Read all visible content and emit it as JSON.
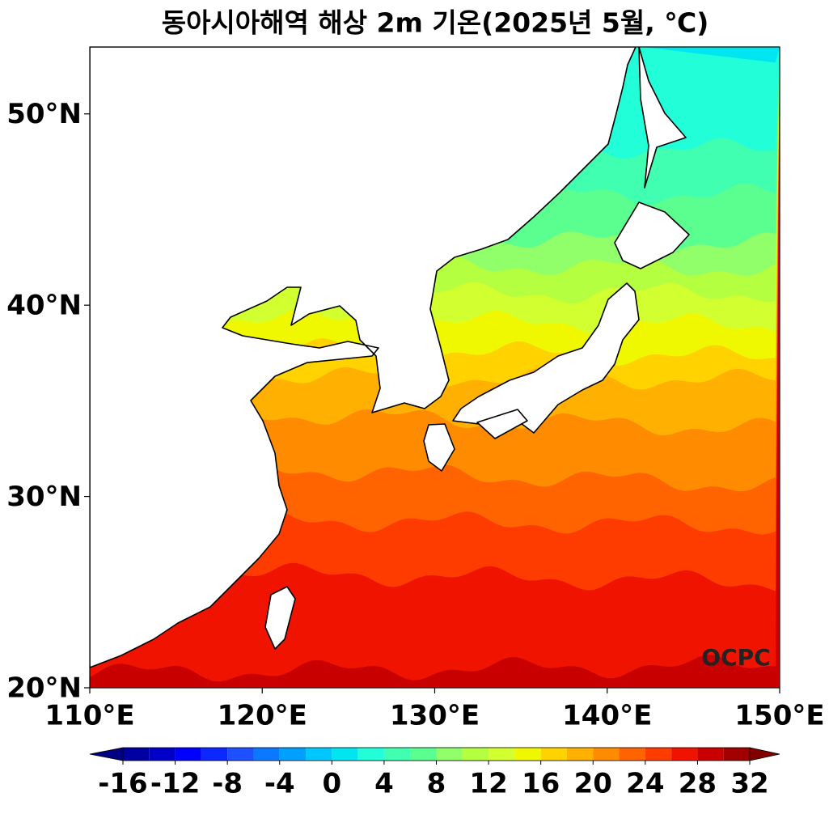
{
  "chart_data": {
    "type": "filled-contour-map",
    "title": "동아시아해역 해상 2m 기온(2025년 5월, ℃)",
    "xlim": [
      110,
      150
    ],
    "xticks": [
      {
        "value": 110,
        "label": "110°E"
      },
      {
        "value": 120,
        "label": "120°E"
      },
      {
        "value": 130,
        "label": "130°E"
      },
      {
        "value": 140,
        "label": "140°E"
      },
      {
        "value": 150,
        "label": "150°E"
      }
    ],
    "ylim": [
      20,
      53.5
    ],
    "yticks": [
      {
        "value": 20,
        "label": "20°N"
      },
      {
        "value": 30,
        "label": "30°N"
      },
      {
        "value": 40,
        "label": "40°N"
      },
      {
        "value": 50,
        "label": "50°N"
      }
    ],
    "colorbar": {
      "boundaries": [
        -16,
        -14,
        -12,
        -10,
        -8,
        -6,
        -4,
        -2,
        0,
        2,
        4,
        6,
        8,
        10,
        12,
        14,
        16,
        18,
        20,
        22,
        24,
        26,
        28,
        30,
        32
      ],
      "colors": [
        "#0000a0",
        "#0000c8",
        "#0000ff",
        "#0a28ff",
        "#1e50ff",
        "#0a78ff",
        "#00a0ff",
        "#00c8ff",
        "#00e6f0",
        "#22ffd8",
        "#40ffb0",
        "#5aff90",
        "#90ff6a",
        "#b4ff40",
        "#d2ff30",
        "#f0f800",
        "#ffd200",
        "#ffb000",
        "#ff8c00",
        "#ff6400",
        "#ff3c00",
        "#f01400",
        "#c80000",
        "#a00000"
      ],
      "under_color": "#000080",
      "over_color": "#800000",
      "ticks": [
        -16,
        -12,
        -8,
        -4,
        0,
        4,
        8,
        12,
        16,
        20,
        24,
        28,
        32
      ]
    },
    "watermark": "OCPC"
  }
}
